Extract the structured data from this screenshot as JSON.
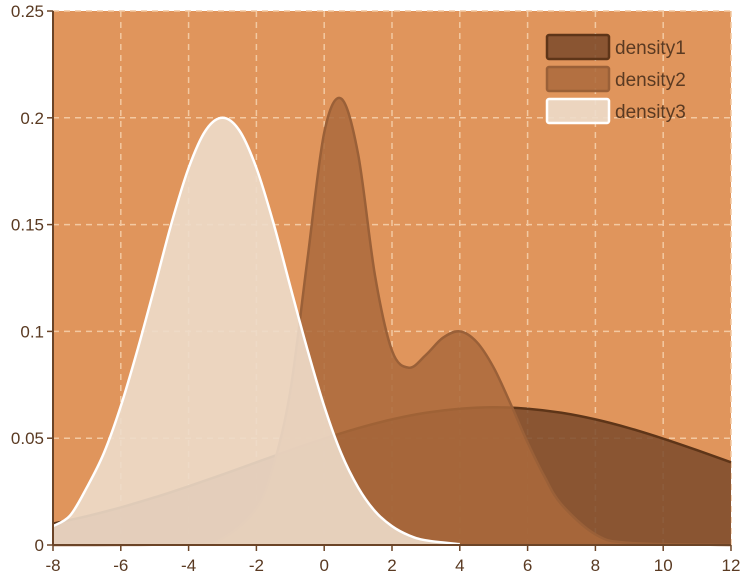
{
  "chart_data": {
    "type": "area",
    "title": "",
    "xlabel": "",
    "ylabel": "",
    "xlim": [
      -8,
      12
    ],
    "ylim": [
      0,
      0.25
    ],
    "x_ticks": [
      -8,
      -6,
      -4,
      -2,
      0,
      2,
      4,
      6,
      8,
      10,
      12
    ],
    "y_ticks": [
      0,
      0.05,
      0.1,
      0.15,
      0.2,
      0.25
    ],
    "x_tick_labels": [
      "-8",
      "-6",
      "-4",
      "-2",
      "0",
      "2",
      "4",
      "6",
      "8",
      "10",
      "12"
    ],
    "y_tick_labels": [
      "0",
      "0.05",
      "0.1",
      "0.15",
      "0.2",
      "0.25"
    ],
    "grid": true,
    "grid_style": "dashed",
    "legend_position": "top-right",
    "background_color": "#e0955c",
    "series": [
      {
        "name": "density1",
        "fill": "#7a4a2a",
        "fill_opacity": 0.85,
        "stroke": "#5e3518",
        "x": [
          -8,
          -7,
          -6,
          -5,
          -4,
          -3,
          -2,
          -1,
          0,
          1,
          2,
          3,
          4,
          5,
          6,
          7,
          8,
          9,
          10,
          11,
          12
        ],
        "y": [
          0.01,
          0.0135,
          0.0176,
          0.0223,
          0.0275,
          0.033,
          0.0387,
          0.0444,
          0.0498,
          0.0547,
          0.0588,
          0.0619,
          0.0638,
          0.0645,
          0.0638,
          0.0619,
          0.0588,
          0.0547,
          0.0498,
          0.0444,
          0.0387
        ]
      },
      {
        "name": "density2",
        "fill": "#aa6a3c",
        "fill_opacity": 0.85,
        "stroke": "#9a6038",
        "x": [
          -8,
          -4,
          -3,
          -2,
          -1.5,
          -1,
          -0.5,
          0,
          0.5,
          1,
          1.5,
          2,
          2.5,
          3,
          3.5,
          4,
          4.5,
          5,
          5.5,
          6,
          6.5,
          7,
          8,
          9,
          12
        ],
        "y": [
          0,
          0.0004,
          0.0031,
          0.017,
          0.037,
          0.072,
          0.133,
          0.193,
          0.209,
          0.183,
          0.126,
          0.091,
          0.083,
          0.089,
          0.097,
          0.1,
          0.095,
          0.083,
          0.066,
          0.048,
          0.032,
          0.019,
          0.005,
          0.001,
          0
        ]
      },
      {
        "name": "density3",
        "fill": "#eddcca",
        "fill_opacity": 0.9,
        "stroke": "#ffffff",
        "x": [
          -8,
          -7.5,
          -7,
          -6.5,
          -6,
          -5.5,
          -5,
          -4.5,
          -4,
          -3.5,
          -3,
          -2.5,
          -2,
          -1.5,
          -1,
          -0.5,
          0,
          0.5,
          1,
          1.5,
          2,
          2.5,
          3,
          4
        ],
        "y": [
          0.0088,
          0.0137,
          0.027,
          0.043,
          0.065,
          0.0918,
          0.121,
          0.1509,
          0.1765,
          0.194,
          0.2,
          0.194,
          0.1765,
          0.1509,
          0.121,
          0.0918,
          0.065,
          0.043,
          0.027,
          0.0158,
          0.0088,
          0.0045,
          0.0022,
          0.0004
        ]
      }
    ]
  }
}
